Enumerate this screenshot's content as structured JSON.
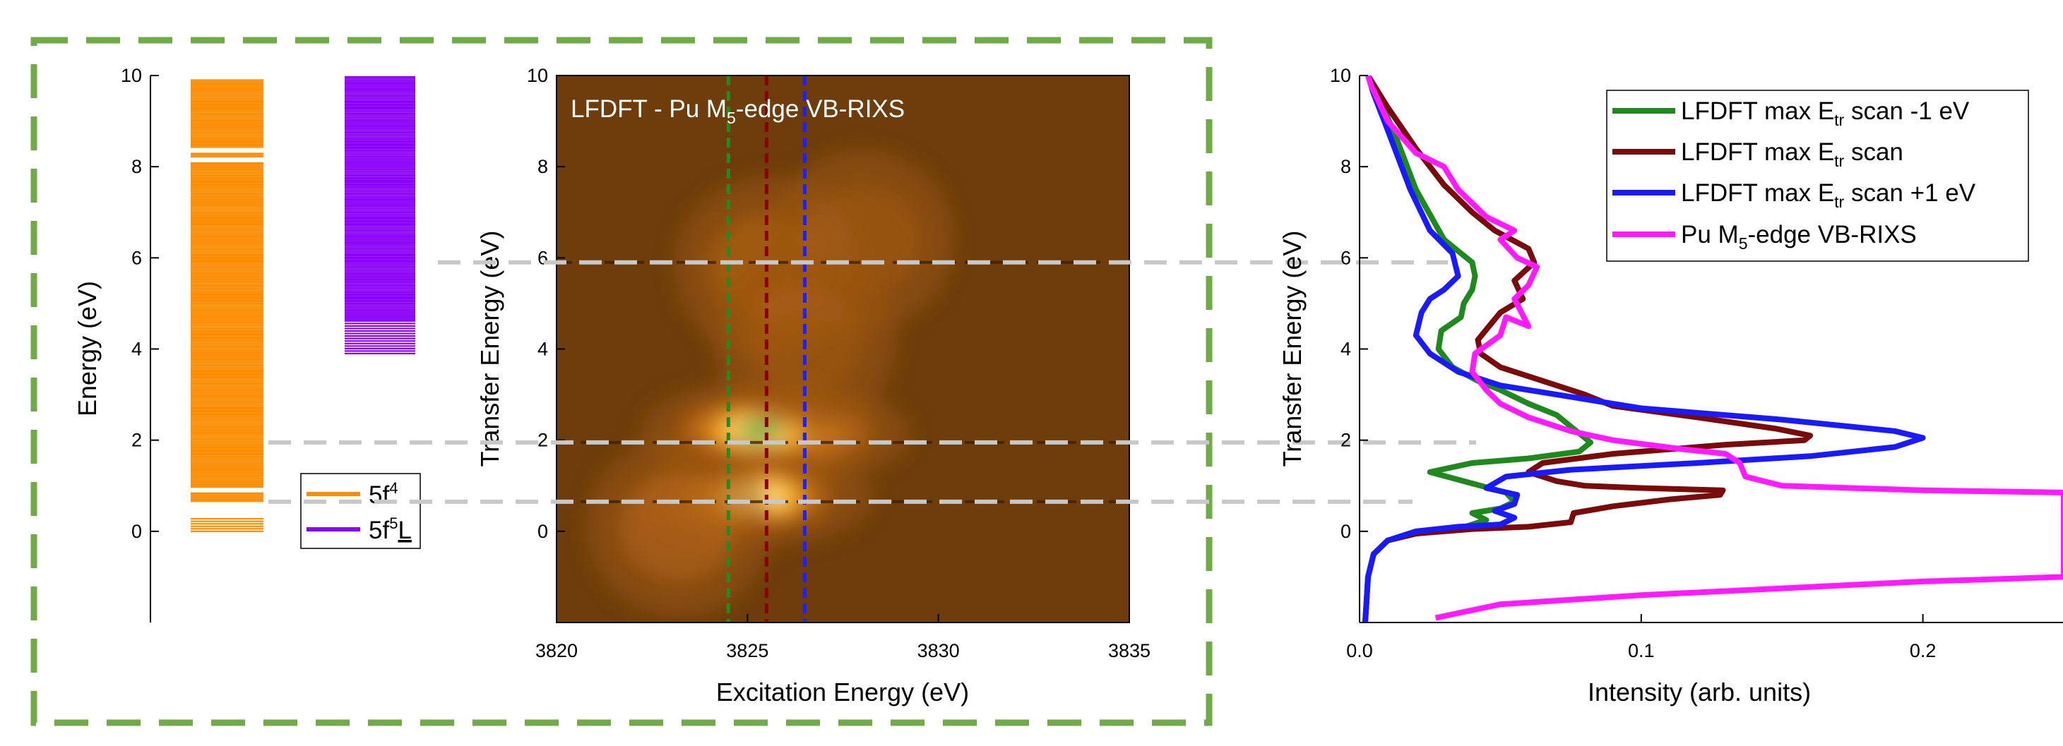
{
  "chart_data": [
    {
      "type": "level-diagram",
      "ylabel": "Energy (eV)",
      "ylim": [
        -2,
        10
      ],
      "yticks": [
        "0",
        "2",
        "4",
        "6",
        "8",
        "10"
      ],
      "series": [
        {
          "name": "5f4",
          "name_base": "5f",
          "name_sup": "4",
          "color": "#ff8c00",
          "range": [
            0.0,
            9.9
          ],
          "dense_from": 0.65,
          "gaps": [
            [
              0.3,
              0.65
            ],
            [
              0.85,
              0.95
            ],
            [
              8.1,
              8.2
            ],
            [
              8.3,
              8.4
            ]
          ]
        },
        {
          "name": "5f5L",
          "name_base": "5f",
          "name_sup": "5",
          "name_tail": "L",
          "color": "#8b00ff",
          "range": [
            3.9,
            10.0
          ],
          "dense_from": 4.6
        }
      ]
    },
    {
      "type": "heatmap",
      "title": "LFDFT - Pu M5-edge VB-RIXS",
      "title_parts": [
        "LFDFT - Pu M",
        "5",
        "-edge VB-RIXS"
      ],
      "xlabel": "Excitation Energy (eV)",
      "ylabel": "Transfer Energy (eV)",
      "xlim": [
        3820,
        3835
      ],
      "ylim": [
        -2,
        10
      ],
      "xticks": [
        "3820",
        "3825",
        "3830",
        "3835"
      ],
      "yticks": [
        "0",
        "2",
        "4",
        "6",
        "8",
        "10"
      ],
      "peaks": [
        {
          "x": 3826.2,
          "y": 2.15,
          "intensity": 1.0
        },
        {
          "x": 3825.3,
          "y": 2.2,
          "intensity": 0.85
        },
        {
          "x": 3825.2,
          "y": 0.75,
          "intensity": 0.7
        },
        {
          "x": 3823.2,
          "y": 0.1,
          "intensity": 0.45
        },
        {
          "x": 3825.5,
          "y": 5.8,
          "intensity": 0.4
        },
        {
          "x": 3828.0,
          "y": 6.4,
          "intensity": 0.25
        },
        {
          "x": 3826.5,
          "y": 4.2,
          "intensity": 0.22
        }
      ],
      "vlines": [
        {
          "x": 3824.5,
          "color": "#228b22"
        },
        {
          "x": 3825.5,
          "color": "#8b0000"
        },
        {
          "x": 3826.5,
          "color": "#1e1eff"
        }
      ],
      "hlines_y": [
        5.9,
        1.95,
        0.65
      ]
    },
    {
      "type": "line",
      "xlabel": "Intensity (arb. units)",
      "ylabel": "Transfer Energy (eV)",
      "xlim": [
        0,
        0.25
      ],
      "ylim": [
        -2,
        10
      ],
      "xticks": [
        "0.0",
        "0.1",
        "0.2"
      ],
      "yticks": [
        "0",
        "2",
        "4",
        "6",
        "8",
        "10"
      ],
      "legend_position": "top-right",
      "series": [
        {
          "name": "LFDFT max Etr scan -1 eV",
          "label_parts": [
            "LFDFT max E",
            "tr",
            " scan -1 eV"
          ],
          "color": "#1e8a1e",
          "points": [
            [
              0.002,
              -2
            ],
            [
              0.003,
              -1
            ],
            [
              0.005,
              -0.5
            ],
            [
              0.01,
              -0.2
            ],
            [
              0.02,
              -0.05
            ],
            [
              0.035,
              0.05
            ],
            [
              0.045,
              0.25
            ],
            [
              0.04,
              0.4
            ],
            [
              0.05,
              0.5
            ],
            [
              0.055,
              0.65
            ],
            [
              0.052,
              0.85
            ],
            [
              0.04,
              1.05
            ],
            [
              0.025,
              1.3
            ],
            [
              0.04,
              1.5
            ],
            [
              0.06,
              1.6
            ],
            [
              0.078,
              1.75
            ],
            [
              0.082,
              1.95
            ],
            [
              0.075,
              2.3
            ],
            [
              0.07,
              2.55
            ],
            [
              0.06,
              2.8
            ],
            [
              0.05,
              3.1
            ],
            [
              0.042,
              3.3
            ],
            [
              0.033,
              3.6
            ],
            [
              0.028,
              4.0
            ],
            [
              0.029,
              4.4
            ],
            [
              0.036,
              4.7
            ],
            [
              0.037,
              5.0
            ],
            [
              0.04,
              5.3
            ],
            [
              0.041,
              5.6
            ],
            [
              0.04,
              5.9
            ],
            [
              0.03,
              6.4
            ],
            [
              0.02,
              7.5
            ],
            [
              0.012,
              8.8
            ],
            [
              0.006,
              9.6
            ],
            [
              0.003,
              10
            ]
          ]
        },
        {
          "name": "LFDFT max Etr scan",
          "label_parts": [
            "LFDFT max E",
            "tr",
            " scan"
          ],
          "color": "#7b0a0a",
          "points": [
            [
              0.002,
              -2
            ],
            [
              0.003,
              -1
            ],
            [
              0.005,
              -0.5
            ],
            [
              0.01,
              -0.2
            ],
            [
              0.02,
              -0.05
            ],
            [
              0.04,
              0.05
            ],
            [
              0.06,
              0.1
            ],
            [
              0.075,
              0.2
            ],
            [
              0.076,
              0.4
            ],
            [
              0.09,
              0.55
            ],
            [
              0.11,
              0.7
            ],
            [
              0.128,
              0.8
            ],
            [
              0.129,
              0.9
            ],
            [
              0.1,
              0.95
            ],
            [
              0.08,
              1.0
            ],
            [
              0.07,
              1.1
            ],
            [
              0.06,
              1.3
            ],
            [
              0.065,
              1.5
            ],
            [
              0.09,
              1.7
            ],
            [
              0.13,
              1.9
            ],
            [
              0.158,
              2.0
            ],
            [
              0.16,
              2.1
            ],
            [
              0.148,
              2.25
            ],
            [
              0.12,
              2.5
            ],
            [
              0.09,
              2.75
            ],
            [
              0.08,
              3.0
            ],
            [
              0.065,
              3.3
            ],
            [
              0.05,
              3.6
            ],
            [
              0.043,
              3.9
            ],
            [
              0.042,
              4.2
            ],
            [
              0.046,
              4.5
            ],
            [
              0.05,
              4.8
            ],
            [
              0.058,
              5.1
            ],
            [
              0.055,
              5.5
            ],
            [
              0.062,
              5.9
            ],
            [
              0.06,
              6.2
            ],
            [
              0.048,
              6.6
            ],
            [
              0.04,
              7.0
            ],
            [
              0.03,
              7.6
            ],
            [
              0.02,
              8.4
            ],
            [
              0.01,
              9.3
            ],
            [
              0.003,
              10
            ]
          ]
        },
        {
          "name": "LFDFT max Etr scan +1 eV",
          "label_parts": [
            "LFDFT max E",
            "tr",
            " scan +1 eV"
          ],
          "color": "#1a1aff",
          "points": [
            [
              0.002,
              -2
            ],
            [
              0.003,
              -1
            ],
            [
              0.005,
              -0.5
            ],
            [
              0.01,
              -0.2
            ],
            [
              0.02,
              0.0
            ],
            [
              0.035,
              0.1
            ],
            [
              0.05,
              0.15
            ],
            [
              0.055,
              0.3
            ],
            [
              0.048,
              0.45
            ],
            [
              0.055,
              0.6
            ],
            [
              0.056,
              0.8
            ],
            [
              0.045,
              0.95
            ],
            [
              0.052,
              1.2
            ],
            [
              0.075,
              1.35
            ],
            [
              0.12,
              1.5
            ],
            [
              0.16,
              1.65
            ],
            [
              0.19,
              1.85
            ],
            [
              0.2,
              2.05
            ],
            [
              0.19,
              2.2
            ],
            [
              0.15,
              2.45
            ],
            [
              0.1,
              2.7
            ],
            [
              0.07,
              3.0
            ],
            [
              0.05,
              3.2
            ],
            [
              0.035,
              3.5
            ],
            [
              0.025,
              3.9
            ],
            [
              0.02,
              4.3
            ],
            [
              0.022,
              4.8
            ],
            [
              0.025,
              5.1
            ],
            [
              0.03,
              5.3
            ],
            [
              0.035,
              5.6
            ],
            [
              0.033,
              6.1
            ],
            [
              0.025,
              6.6
            ],
            [
              0.018,
              7.5
            ],
            [
              0.01,
              8.8
            ],
            [
              0.005,
              9.6
            ],
            [
              0.003,
              10
            ]
          ]
        },
        {
          "name": "Pu M5-edge VB-RIXS",
          "label_parts": [
            "Pu M",
            "5",
            "-edge VB-RIXS"
          ],
          "color": "#ff1aff",
          "points": [
            [
              0.027,
              -1.9
            ],
            [
              0.05,
              -1.6
            ],
            [
              0.1,
              -1.4
            ],
            [
              0.15,
              -1.25
            ],
            [
              0.2,
              -1.1
            ],
            [
              0.25,
              -1.0
            ],
            [
              0.25,
              0.85
            ],
            [
              0.2,
              0.9
            ],
            [
              0.15,
              1.0
            ],
            [
              0.137,
              1.2
            ],
            [
              0.135,
              1.5
            ],
            [
              0.13,
              1.7
            ],
            [
              0.115,
              1.8
            ],
            [
              0.09,
              2.0
            ],
            [
              0.075,
              2.2
            ],
            [
              0.06,
              2.5
            ],
            [
              0.05,
              2.8
            ],
            [
              0.045,
              3.1
            ],
            [
              0.04,
              3.5
            ],
            [
              0.041,
              3.9
            ],
            [
              0.05,
              4.3
            ],
            [
              0.052,
              4.7
            ],
            [
              0.06,
              4.5
            ],
            [
              0.055,
              5.1
            ],
            [
              0.06,
              5.4
            ],
            [
              0.063,
              5.8
            ],
            [
              0.056,
              6.0
            ],
            [
              0.05,
              6.4
            ],
            [
              0.055,
              6.6
            ],
            [
              0.045,
              6.9
            ],
            [
              0.035,
              7.5
            ],
            [
              0.03,
              8.0
            ],
            [
              0.02,
              8.3
            ],
            [
              0.01,
              9.0
            ],
            [
              0.004,
              9.8
            ],
            [
              0.003,
              10
            ]
          ]
        }
      ],
      "hlines_y": [
        5.9,
        1.95,
        0.65
      ]
    }
  ],
  "colors": {
    "frame_green": "#6fac46",
    "ref_dash_gray": "#c8c8c8",
    "heatmap_background": "#6e3d0b"
  }
}
